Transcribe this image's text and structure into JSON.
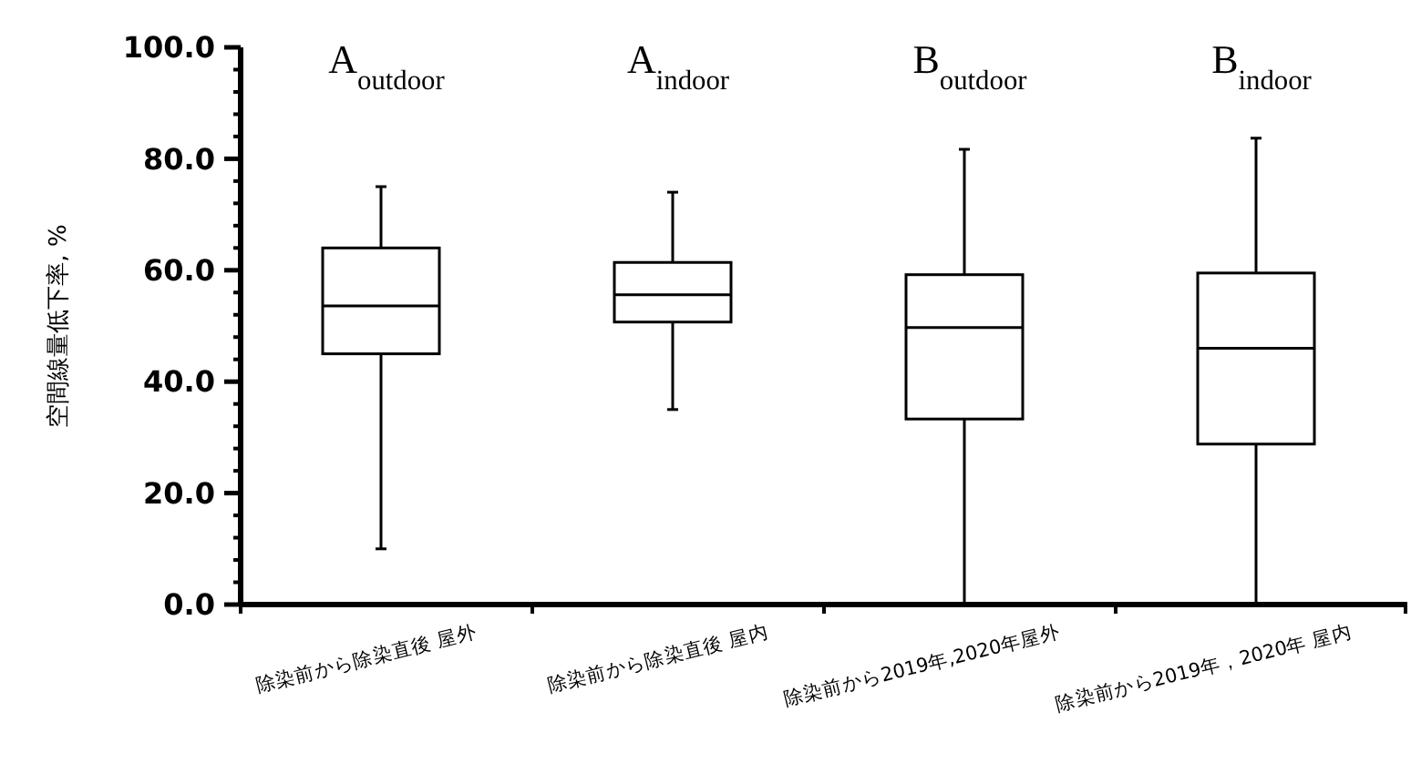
{
  "chart_data": {
    "type": "box",
    "ylabel": "空間線量低下率, %",
    "categories": [
      "除染前から除染直後 屋外",
      "除染前から除染直後 屋内",
      "除染前から2019年,2020年屋外",
      "除染前から2019年，2020年 屋内"
    ],
    "boxes": [
      {
        "low": 10,
        "q1": 45,
        "median": 53.6,
        "q3": 64,
        "high": 75
      },
      {
        "low": 35,
        "q1": 50.7,
        "median": 55.6,
        "q3": 61.4,
        "high": 74
      },
      {
        "low": 0,
        "q1": 33.3,
        "median": 49.7,
        "q3": 59.2,
        "high": 81.7
      },
      {
        "low": 0,
        "q1": 28.8,
        "median": 46,
        "q3": 59.5,
        "high": 83.7
      }
    ],
    "annotations": [
      "A$_{outdoor}$",
      "A$_{indoor}$",
      "B$_{outdoor}$",
      "B$_{indoor}$"
    ],
    "ylim": [
      0,
      100
    ],
    "yticks": [
      {
        "value": 0,
        "label": "0.0"
      },
      {
        "value": 4,
        "label": null
      },
      {
        "value": 8,
        "label": null
      },
      {
        "value": 12,
        "label": null
      },
      {
        "value": 16,
        "label": null
      },
      {
        "value": 20,
        "label": "20.0"
      },
      {
        "value": 24,
        "label": null
      },
      {
        "value": 28,
        "label": null
      },
      {
        "value": 32,
        "label": null
      },
      {
        "value": 36,
        "label": null
      },
      {
        "value": 40,
        "label": "40.0"
      },
      {
        "value": 44,
        "label": null
      },
      {
        "value": 48,
        "label": null
      },
      {
        "value": 52,
        "label": null
      },
      {
        "value": 56,
        "label": null
      },
      {
        "value": 60,
        "label": "60.0"
      },
      {
        "value": 64,
        "label": null
      },
      {
        "value": 68,
        "label": null
      },
      {
        "value": 72,
        "label": null
      },
      {
        "value": 76,
        "label": null
      },
      {
        "value": 80,
        "label": "80.0"
      },
      {
        "value": 84,
        "label": null
      },
      {
        "value": 88,
        "label": null
      },
      {
        "value": 92,
        "label": null
      },
      {
        "value": 96,
        "label": null
      },
      {
        "value": 100,
        "label": "100.0"
      }
    ],
    "grid": false
  }
}
